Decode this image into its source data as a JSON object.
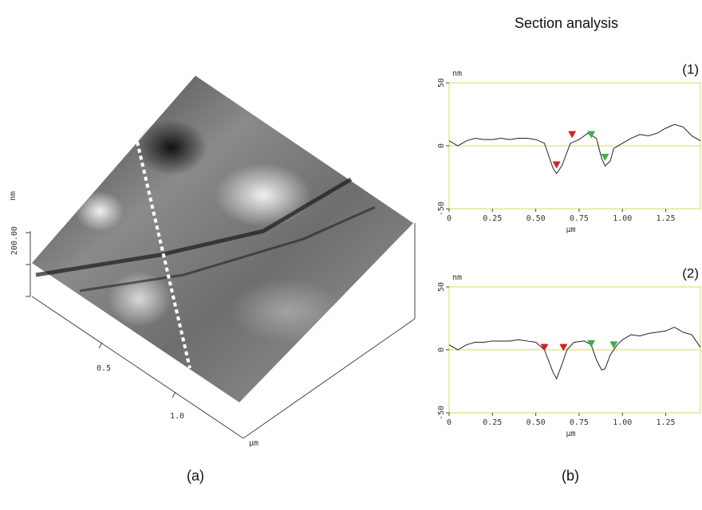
{
  "title": "Section analysis",
  "panel_labels": [
    "(a)",
    "(b)"
  ],
  "surface": {
    "z_label": "nm",
    "z_tick": "200.00",
    "x_ticks": [
      "0.5",
      "1.0"
    ],
    "x_label": "µm"
  },
  "chart_data": [
    {
      "type": "line",
      "label": "(1)",
      "y_label": "nm",
      "x_label": "µm",
      "color": "#222222",
      "x": [
        0,
        0.05,
        0.1,
        0.15,
        0.2,
        0.25,
        0.3,
        0.35,
        0.4,
        0.45,
        0.5,
        0.55,
        0.6,
        0.62,
        0.65,
        0.7,
        0.75,
        0.8,
        0.85,
        0.88,
        0.9,
        0.93,
        0.95,
        1.0,
        1.05,
        1.1,
        1.15,
        1.2,
        1.25,
        1.3,
        1.35,
        1.4,
        1.45
      ],
      "values": [
        4,
        0,
        4,
        6,
        5,
        5,
        6,
        5,
        6,
        6,
        5,
        2,
        -18,
        -22,
        -16,
        2,
        5,
        10,
        6,
        -10,
        -16,
        -12,
        -2,
        2,
        6,
        9,
        8,
        10,
        14,
        17,
        15,
        8,
        4
      ],
      "markers": [
        {
          "x": 0.62,
          "y": -18,
          "color": "#d42020"
        },
        {
          "x": 0.71,
          "y": 6,
          "color": "#d42020"
        },
        {
          "x": 0.82,
          "y": 6,
          "color": "#3cb043"
        },
        {
          "x": 0.9,
          "y": -12,
          "color": "#3cb043"
        }
      ],
      "xlim": [
        0,
        1.45
      ],
      "ylim": [
        -50,
        50
      ],
      "yticks": [
        -50,
        0,
        50
      ],
      "xticks": [
        0,
        0.25,
        {
          "value": 0.5,
          "label": "0.50"
        },
        0.75,
        {
          "value": 1,
          "label": "1.00"
        },
        1.25
      ]
    },
    {
      "type": "line",
      "label": "(2)",
      "y_label": "nm",
      "x_label": "µm",
      "color": "#222222",
      "x": [
        0,
        0.05,
        0.1,
        0.15,
        0.2,
        0.25,
        0.3,
        0.35,
        0.4,
        0.45,
        0.5,
        0.55,
        0.6,
        0.62,
        0.65,
        0.68,
        0.72,
        0.78,
        0.82,
        0.85,
        0.88,
        0.9,
        0.93,
        0.97,
        1.0,
        1.05,
        1.1,
        1.15,
        1.2,
        1.25,
        1.3,
        1.35,
        1.4,
        1.45
      ],
      "values": [
        4,
        0,
        4,
        6,
        6,
        7,
        7,
        7,
        8,
        7,
        6,
        0,
        -18,
        -23,
        -12,
        0,
        6,
        7,
        4,
        -8,
        -16,
        -15,
        -4,
        4,
        8,
        12,
        11,
        13,
        14,
        15,
        18,
        14,
        12,
        2
      ],
      "markers": [
        {
          "x": 0.55,
          "y": -1,
          "color": "#d42020"
        },
        {
          "x": 0.66,
          "y": -1,
          "color": "#d42020"
        },
        {
          "x": 0.82,
          "y": 2,
          "color": "#3cb043"
        },
        {
          "x": 0.95,
          "y": 1,
          "color": "#3cb043"
        }
      ],
      "xlim": [
        0,
        1.45
      ],
      "ylim": [
        -50,
        50
      ],
      "yticks": [
        -50,
        0,
        50
      ],
      "xticks": [
        0,
        0.25,
        {
          "value": 0.5,
          "label": "0.50"
        },
        0.75,
        {
          "value": 1,
          "label": "1.00"
        },
        1.25
      ]
    }
  ]
}
